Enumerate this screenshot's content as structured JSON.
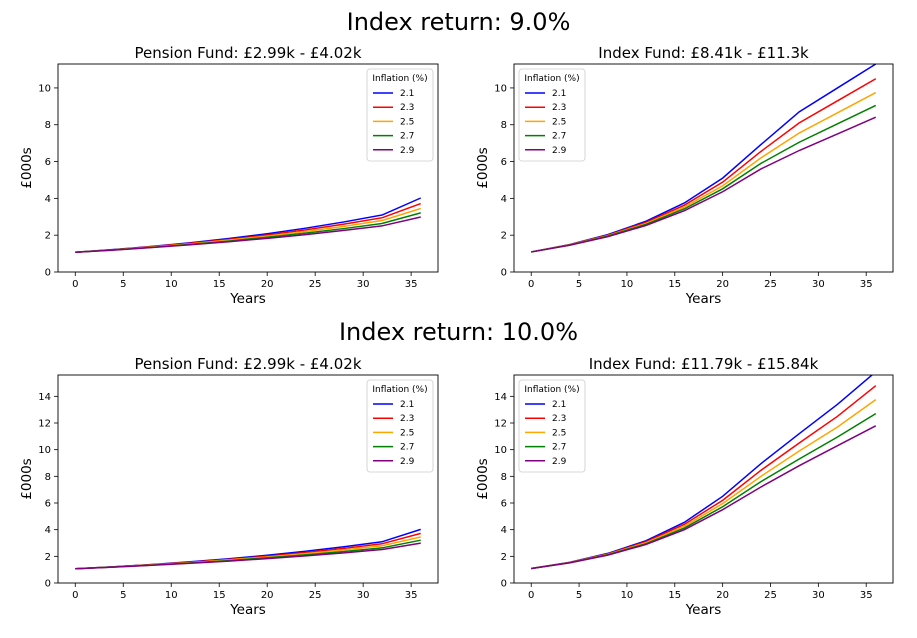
{
  "suptitles": [
    "Index return: 9.0%",
    "Index return: 10.0%"
  ],
  "legend_title": "Inflation (%)",
  "colors": {
    "2.1": "#0000ff",
    "2.3": "#ff0000",
    "2.5": "#ffa500",
    "2.7": "#008000",
    "2.9": "#800080"
  },
  "chart_data": [
    {
      "type": "line",
      "title": "Pension Fund: £2.99k - £4.02k",
      "xlabel": "Years",
      "ylabel": "£000s",
      "xlim": [
        -1.8,
        37.8
      ],
      "ylim": [
        0,
        11.3
      ],
      "xticks": [
        0,
        5,
        10,
        15,
        20,
        25,
        30,
        35
      ],
      "yticks": [
        0,
        2,
        4,
        6,
        8,
        10
      ],
      "legend_position": "top-right",
      "x": [
        0,
        4,
        8,
        12,
        16,
        20,
        24,
        28,
        32,
        36
      ],
      "series": [
        {
          "name": "2.1",
          "values": [
            1.07,
            1.22,
            1.39,
            1.59,
            1.82,
            2.08,
            2.38,
            2.72,
            3.1,
            4.02
          ]
        },
        {
          "name": "2.3",
          "values": [
            1.07,
            1.21,
            1.38,
            1.56,
            1.77,
            2.01,
            2.29,
            2.6,
            2.95,
            3.72
          ]
        },
        {
          "name": "2.5",
          "values": [
            1.07,
            1.2,
            1.36,
            1.53,
            1.73,
            1.95,
            2.2,
            2.48,
            2.8,
            3.45
          ]
        },
        {
          "name": "2.7",
          "values": [
            1.07,
            1.2,
            1.34,
            1.5,
            1.68,
            1.89,
            2.11,
            2.36,
            2.64,
            3.21
          ]
        },
        {
          "name": "2.9",
          "values": [
            1.07,
            1.19,
            1.33,
            1.48,
            1.64,
            1.83,
            2.03,
            2.26,
            2.51,
            2.99
          ]
        }
      ],
      "grid": false
    },
    {
      "type": "line",
      "title": "Index Fund: £8.41k - £11.3k",
      "xlabel": "Years",
      "ylabel": "£000s",
      "xlim": [
        -1.8,
        37.8
      ],
      "ylim": [
        0,
        11.3
      ],
      "xticks": [
        0,
        5,
        10,
        15,
        20,
        25,
        30,
        35
      ],
      "yticks": [
        0,
        2,
        4,
        6,
        8,
        10
      ],
      "legend_position": "top-left",
      "x": [
        0,
        4,
        8,
        12,
        16,
        20,
        24,
        28,
        32,
        36
      ],
      "series": [
        {
          "name": "2.1",
          "values": [
            1.09,
            1.49,
            2.03,
            2.76,
            3.75,
            5.1,
            6.92,
            8.7,
            10.0,
            11.3
          ]
        },
        {
          "name": "2.3",
          "values": [
            1.09,
            1.48,
            2.0,
            2.7,
            3.63,
            4.88,
            6.55,
            8.1,
            9.3,
            10.5
          ]
        },
        {
          "name": "2.5",
          "values": [
            1.09,
            1.47,
            1.97,
            2.64,
            3.52,
            4.68,
            6.2,
            7.55,
            8.65,
            9.75
          ]
        },
        {
          "name": "2.7",
          "values": [
            1.09,
            1.46,
            1.95,
            2.59,
            3.43,
            4.52,
            5.9,
            7.05,
            8.05,
            9.05
          ]
        },
        {
          "name": "2.9",
          "values": [
            1.09,
            1.45,
            1.92,
            2.53,
            3.33,
            4.36,
            5.6,
            6.6,
            7.5,
            8.41
          ]
        }
      ],
      "grid": false
    },
    {
      "type": "line",
      "title": "Pension Fund: £2.99k - £4.02k",
      "xlabel": "Years",
      "ylabel": "£000s",
      "xlim": [
        -1.8,
        37.8
      ],
      "ylim": [
        0,
        15.6
      ],
      "xticks": [
        0,
        5,
        10,
        15,
        20,
        25,
        30,
        35
      ],
      "yticks": [
        0,
        2,
        4,
        6,
        8,
        10,
        12,
        14
      ],
      "legend_position": "top-right",
      "x": [
        0,
        4,
        8,
        12,
        16,
        20,
        24,
        28,
        32,
        36
      ],
      "series": [
        {
          "name": "2.1",
          "values": [
            1.07,
            1.22,
            1.39,
            1.59,
            1.82,
            2.08,
            2.38,
            2.72,
            3.1,
            4.02
          ]
        },
        {
          "name": "2.3",
          "values": [
            1.07,
            1.21,
            1.38,
            1.56,
            1.77,
            2.01,
            2.29,
            2.6,
            2.95,
            3.72
          ]
        },
        {
          "name": "2.5",
          "values": [
            1.07,
            1.2,
            1.36,
            1.53,
            1.73,
            1.95,
            2.2,
            2.48,
            2.8,
            3.45
          ]
        },
        {
          "name": "2.7",
          "values": [
            1.07,
            1.2,
            1.34,
            1.5,
            1.68,
            1.89,
            2.11,
            2.36,
            2.64,
            3.21
          ]
        },
        {
          "name": "2.9",
          "values": [
            1.07,
            1.19,
            1.33,
            1.48,
            1.64,
            1.83,
            2.03,
            2.26,
            2.51,
            2.99
          ]
        }
      ],
      "grid": false
    },
    {
      "type": "line",
      "title": "Index Fund: £11.79k - £15.84k",
      "xlabel": "Years",
      "ylabel": "£000s",
      "xlim": [
        -1.8,
        37.8
      ],
      "ylim": [
        0,
        15.6
      ],
      "xticks": [
        0,
        5,
        10,
        15,
        20,
        25,
        30,
        35
      ],
      "yticks": [
        0,
        2,
        4,
        6,
        8,
        10,
        12,
        14
      ],
      "legend_position": "top-left",
      "x": [
        0,
        4,
        8,
        12,
        16,
        20,
        24,
        28,
        32,
        36
      ],
      "series": [
        {
          "name": "2.1",
          "values": [
            1.09,
            1.55,
            2.22,
            3.17,
            4.55,
            6.5,
            8.95,
            11.2,
            13.4,
            15.84
          ]
        },
        {
          "name": "2.3",
          "values": [
            1.09,
            1.54,
            2.18,
            3.1,
            4.4,
            6.2,
            8.45,
            10.5,
            12.5,
            14.8
          ]
        },
        {
          "name": "2.5",
          "values": [
            1.09,
            1.53,
            2.15,
            3.02,
            4.25,
            5.95,
            8.0,
            9.9,
            11.7,
            13.75
          ]
        },
        {
          "name": "2.7",
          "values": [
            1.09,
            1.52,
            2.12,
            2.95,
            4.12,
            5.72,
            7.6,
            9.3,
            10.95,
            12.7
          ]
        },
        {
          "name": "2.9",
          "values": [
            1.09,
            1.51,
            2.09,
            2.89,
            4.0,
            5.5,
            7.2,
            8.8,
            10.3,
            11.79
          ]
        }
      ],
      "grid": false
    }
  ]
}
